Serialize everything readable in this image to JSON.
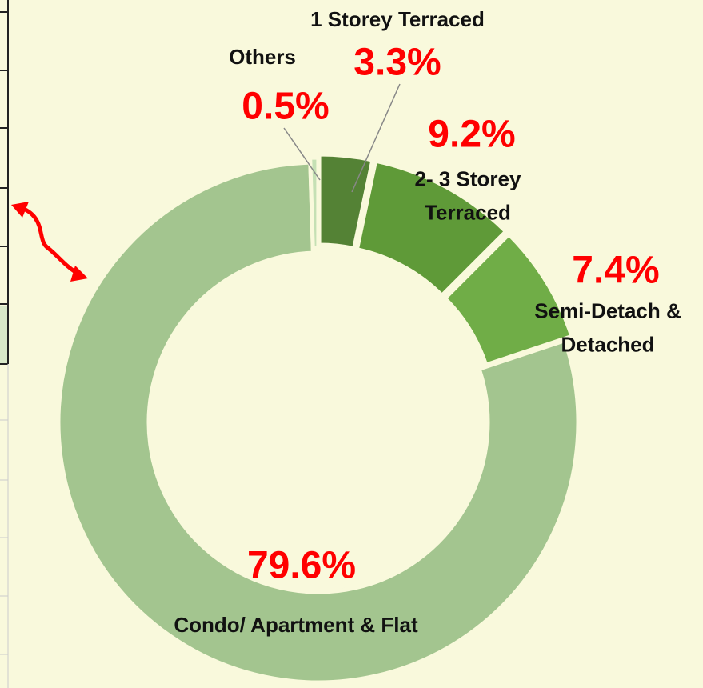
{
  "chart_data": {
    "type": "donut",
    "categories": [
      "1 Storey Terraced",
      "2- 3 Storey Terraced",
      "Semi-Detach & Detached",
      "Condo/ Apartment & Flat",
      "Others"
    ],
    "values": [
      3.3,
      9.2,
      7.4,
      79.6,
      0.5
    ],
    "value_labels": [
      "3.3%",
      "9.2%",
      "7.4%",
      "79.6%",
      "0.5%"
    ],
    "colors": [
      "#548235",
      "#5f9a38",
      "#70ad47",
      "#a3c58f",
      "#c5e0b4"
    ]
  }
}
